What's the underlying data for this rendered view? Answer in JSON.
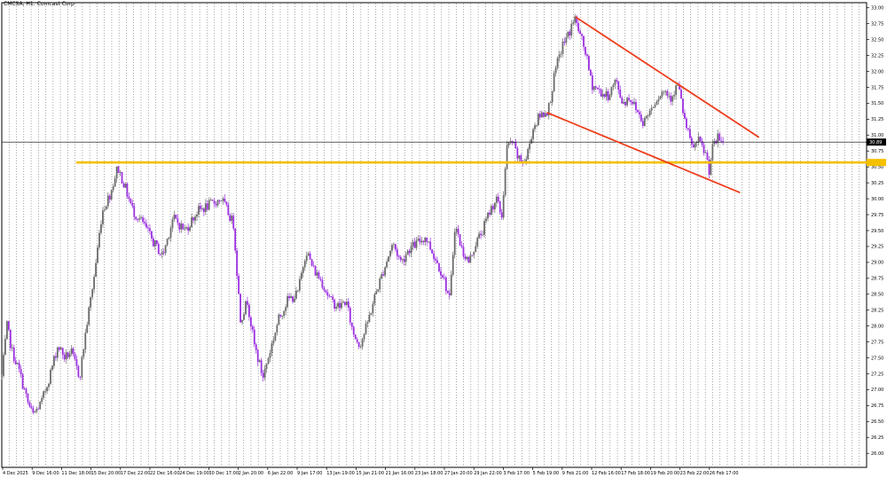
{
  "symbol_label": "CMCSA, H1:  Comcast Corp",
  "colors": {
    "background": "#ffffff",
    "grid": "#6f6f6f",
    "bull_candle": "#6b6b6b",
    "bear_candle": "#9b30e0",
    "trendline": "#ee3d1b",
    "support_line": "#f5c000",
    "current_price_line": "#000000"
  },
  "chart_data": {
    "type": "candlestick",
    "title": "CMCSA, H1:  Comcast Corp",
    "timeframe": "H1",
    "grid": true,
    "grid_style": "dotted-vertical",
    "y_axis_side": "right",
    "ylim": [
      25.78,
      33.08
    ],
    "y_ticks": [
      "26.00",
      "26.25",
      "26.50",
      "26.75",
      "27.00",
      "27.25",
      "27.50",
      "27.75",
      "28.00",
      "28.25",
      "28.50",
      "28.75",
      "29.00",
      "29.25",
      "29.50",
      "29.75",
      "30.00",
      "30.25",
      "30.50",
      "30.75",
      "31.00",
      "31.25",
      "31.50",
      "31.75",
      "32.00",
      "32.25",
      "32.50",
      "32.75",
      "33.00"
    ],
    "x_ticks": [
      "4 Dec 2025",
      "9 Dec 16:00",
      "11 Dec 18:00",
      "15 Dec 20:00",
      "17 Dec 22:00",
      "22 Dec 16:00",
      "24 Dec 19:00",
      "30 Dec 17:00",
      "2 Jan 20:00",
      "6 Jan 22:00",
      "9 Jan 17:00",
      "13 Jan 19:00",
      "15 Jan 21:00",
      "21 Jan 16:00",
      "23 Jan 18:00",
      "27 Jan 20:00",
      "29 Jan 22:00",
      "3 Feb 17:00",
      "5 Feb 19:00",
      "9 Feb 21:00",
      "12 Feb 16:00",
      "17 Feb 18:00",
      "19 Feb 20:00",
      "23 Feb 22:00",
      "26 Feb 17:00"
    ],
    "current_price": "30.89",
    "support_level": 30.57,
    "trendlines": [
      {
        "name": "upper",
        "start": [
          0.664,
          32.85
        ],
        "end": [
          0.875,
          30.97
        ]
      },
      {
        "name": "lower",
        "start": [
          0.631,
          31.35
        ],
        "end": [
          0.853,
          30.1
        ]
      }
    ],
    "anchors": [
      [
        0.0,
        27.2
      ],
      [
        0.006,
        28.0
      ],
      [
        0.012,
        27.6
      ],
      [
        0.02,
        27.3
      ],
      [
        0.03,
        26.8
      ],
      [
        0.036,
        26.6
      ],
      [
        0.046,
        26.8
      ],
      [
        0.055,
        27.2
      ],
      [
        0.065,
        27.7
      ],
      [
        0.073,
        27.5
      ],
      [
        0.08,
        27.6
      ],
      [
        0.09,
        27.2
      ],
      [
        0.098,
        28.0
      ],
      [
        0.107,
        28.8
      ],
      [
        0.116,
        29.8
      ],
      [
        0.126,
        30.1
      ],
      [
        0.134,
        30.5
      ],
      [
        0.142,
        30.2
      ],
      [
        0.152,
        29.8
      ],
      [
        0.164,
        29.6
      ],
      [
        0.176,
        29.3
      ],
      [
        0.186,
        29.1
      ],
      [
        0.198,
        29.7
      ],
      [
        0.212,
        29.5
      ],
      [
        0.226,
        29.8
      ],
      [
        0.24,
        29.9
      ],
      [
        0.254,
        30.0
      ],
      [
        0.268,
        29.6
      ],
      [
        0.276,
        28.1
      ],
      [
        0.284,
        28.4
      ],
      [
        0.292,
        27.7
      ],
      [
        0.302,
        27.2
      ],
      [
        0.31,
        27.6
      ],
      [
        0.32,
        28.1
      ],
      [
        0.33,
        28.4
      ],
      [
        0.342,
        28.5
      ],
      [
        0.352,
        29.2
      ],
      [
        0.36,
        28.9
      ],
      [
        0.37,
        28.7
      ],
      [
        0.38,
        28.4
      ],
      [
        0.39,
        28.3
      ],
      [
        0.398,
        28.4
      ],
      [
        0.406,
        27.9
      ],
      [
        0.414,
        27.7
      ],
      [
        0.422,
        28.0
      ],
      [
        0.432,
        28.5
      ],
      [
        0.442,
        28.9
      ],
      [
        0.452,
        29.3
      ],
      [
        0.462,
        29.0
      ],
      [
        0.47,
        29.2
      ],
      [
        0.48,
        29.3
      ],
      [
        0.49,
        29.4
      ],
      [
        0.5,
        29.1
      ],
      [
        0.51,
        28.8
      ],
      [
        0.518,
        28.4
      ],
      [
        0.524,
        29.6
      ],
      [
        0.532,
        29.2
      ],
      [
        0.54,
        29.0
      ],
      [
        0.548,
        29.3
      ],
      [
        0.556,
        29.5
      ],
      [
        0.564,
        29.8
      ],
      [
        0.572,
        30.0
      ],
      [
        0.578,
        29.7
      ],
      [
        0.584,
        30.8
      ],
      [
        0.59,
        30.9
      ],
      [
        0.598,
        30.6
      ],
      [
        0.606,
        30.6
      ],
      [
        0.614,
        31.1
      ],
      [
        0.622,
        31.3
      ],
      [
        0.632,
        31.4
      ],
      [
        0.64,
        32.0
      ],
      [
        0.648,
        32.4
      ],
      [
        0.656,
        32.6
      ],
      [
        0.662,
        32.85
      ],
      [
        0.668,
        32.6
      ],
      [
        0.675,
        32.3
      ],
      [
        0.682,
        31.8
      ],
      [
        0.69,
        31.7
      ],
      [
        0.7,
        31.6
      ],
      [
        0.71,
        31.85
      ],
      [
        0.718,
        31.5
      ],
      [
        0.726,
        31.6
      ],
      [
        0.734,
        31.4
      ],
      [
        0.742,
        31.2
      ],
      [
        0.75,
        31.4
      ],
      [
        0.758,
        31.6
      ],
      [
        0.766,
        31.7
      ],
      [
        0.774,
        31.6
      ],
      [
        0.782,
        31.8
      ],
      [
        0.79,
        31.2
      ],
      [
        0.798,
        30.8
      ],
      [
        0.806,
        30.9
      ],
      [
        0.814,
        30.7
      ],
      [
        0.818,
        30.45
      ],
      [
        0.822,
        30.8
      ],
      [
        0.828,
        30.95
      ],
      [
        0.834,
        30.89
      ]
    ]
  }
}
